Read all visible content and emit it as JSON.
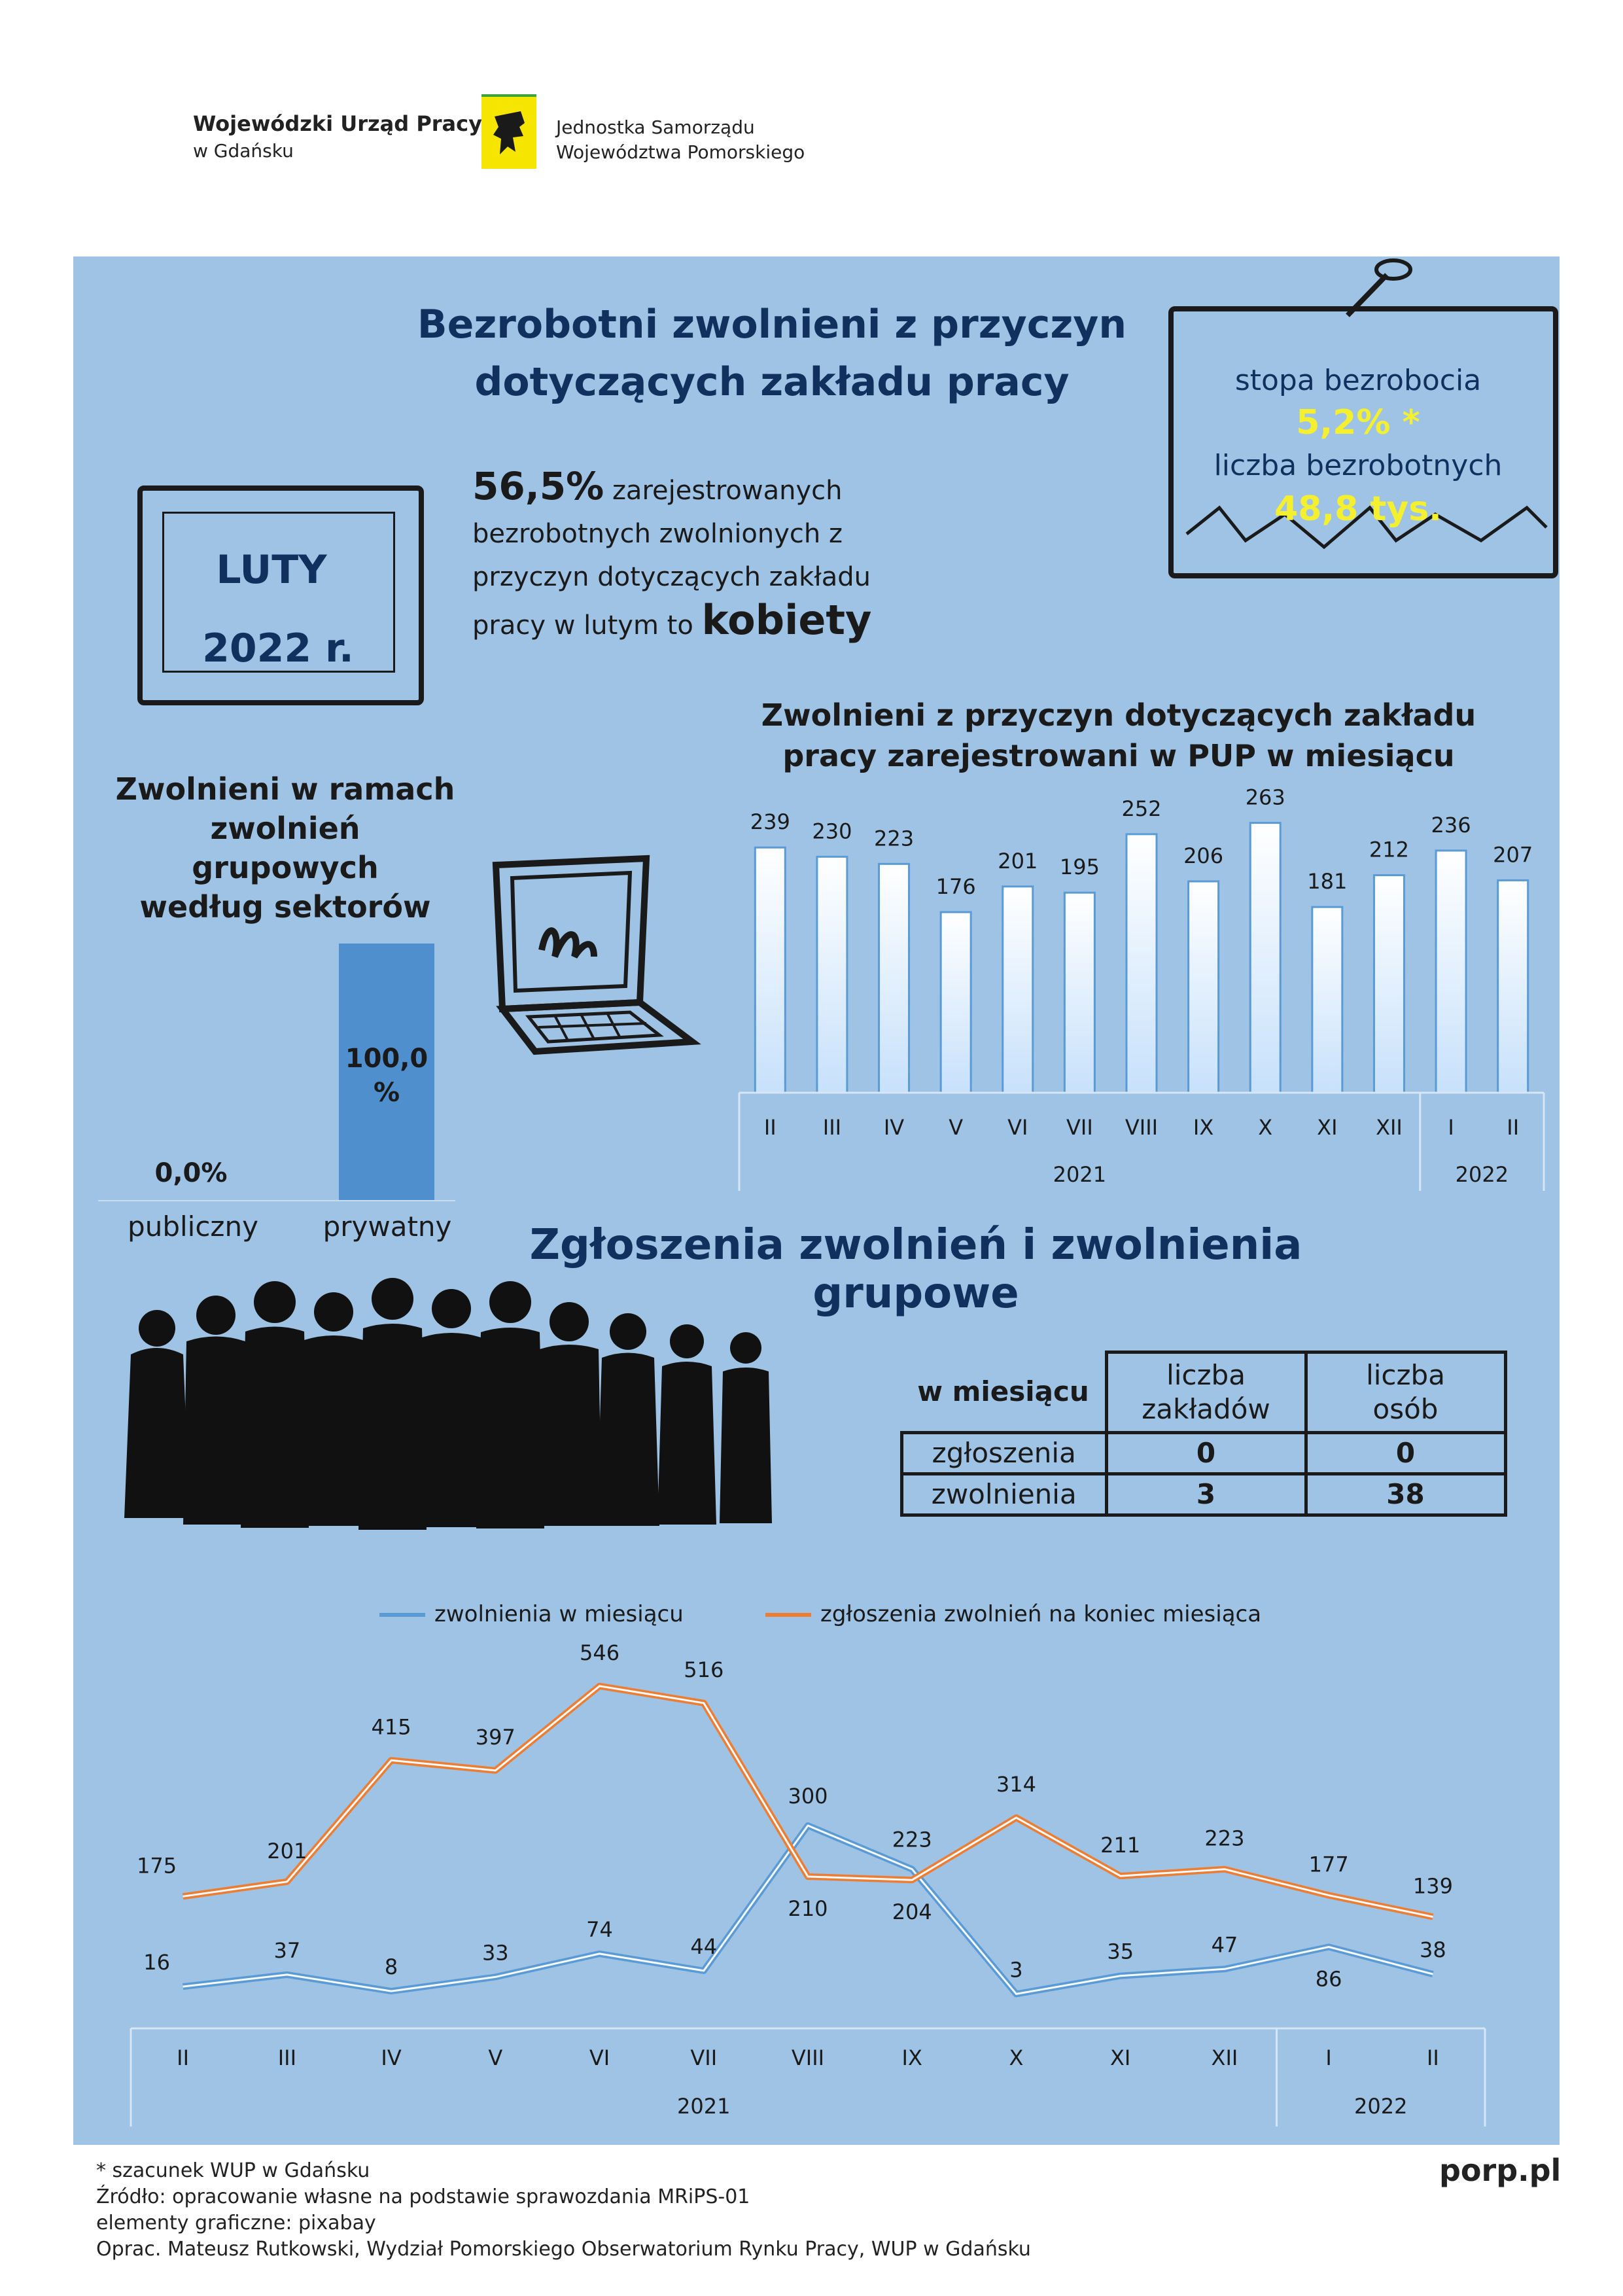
{
  "header": {
    "org_name_line1": "Wojewódzki Urząd Pracy",
    "org_name_line2": "w Gdańsku",
    "unit_line1": "Jednostka Samorządu",
    "unit_line2": "Województwa Pomorskiego"
  },
  "main": {
    "title_line1": "Bezrobotni zwolnieni z przyczyn",
    "title_line2": "dotyczących zakładu pracy",
    "period_month": "LUTY",
    "period_year": "2022 r.",
    "stat": {
      "percent": "56,5%",
      "text_a": "zarejestrowanych",
      "text_b": "bezrobotnych zwolnionych z",
      "text_c": "przyczyn dotyczących zakładu",
      "text_d": "pracy w lutym to",
      "highlight": "kobiety"
    },
    "sign": {
      "rate_label": "stopa bezrobocia",
      "rate_value": "5,2% *",
      "count_label": "liczba bezrobotnych",
      "count_value": "48,8 tys."
    }
  },
  "colors": {
    "panel": "#9ec3e5",
    "title": "#10315e",
    "highlight": "#f4f030",
    "bar_sector": "#4f8fce",
    "line_layoffs": "#5b9bd5",
    "line_notices": "#ed7d31"
  },
  "chart_data": [
    {
      "type": "bar",
      "title_line1": "Zwolnieni w ramach",
      "title_line2": "zwolnień grupowych",
      "title_line3": "według sektorów",
      "categories": [
        "publiczny",
        "prywatny"
      ],
      "values": [
        0.0,
        100.0
      ],
      "value_labels": [
        "0,0%",
        "100,0 %"
      ],
      "ylim": [
        0,
        100
      ]
    },
    {
      "type": "bar",
      "title_line1": "Zwolnieni z przyczyn dotyczących zakładu",
      "title_line2": "pracy zarejestrowani w PUP w miesiącu",
      "categories": [
        "II",
        "III",
        "IV",
        "V",
        "VI",
        "VII",
        "VIII",
        "IX",
        "X",
        "XI",
        "XII",
        "I",
        "II"
      ],
      "values": [
        239,
        230,
        223,
        176,
        201,
        195,
        252,
        206,
        263,
        181,
        212,
        236,
        207
      ],
      "year_groups": [
        {
          "label": "2021",
          "count": 11
        },
        {
          "label": "2022",
          "count": 2
        }
      ],
      "ylim": [
        0,
        300
      ]
    },
    {
      "type": "line",
      "categories": [
        "II",
        "III",
        "IV",
        "V",
        "VI",
        "VII",
        "VIII",
        "IX",
        "X",
        "XI",
        "XII",
        "I",
        "II"
      ],
      "year_groups": [
        {
          "label": "2021",
          "count": 11
        },
        {
          "label": "2022",
          "count": 2
        }
      ],
      "series": [
        {
          "name": "zwolnienia w miesiącu",
          "values": [
            16,
            37,
            8,
            33,
            74,
            44,
            300,
            223,
            3,
            35,
            47,
            86,
            38
          ]
        },
        {
          "name": "zgłoszenia zwolnień na koniec miesiąca",
          "values": [
            175,
            201,
            415,
            397,
            546,
            516,
            210,
            204,
            314,
            211,
            223,
            177,
            139
          ]
        }
      ],
      "legend": "top",
      "ylim": [
        0,
        600
      ]
    }
  ],
  "section2": {
    "title": "Zgłoszenia zwolnień i zwolnienia grupowe",
    "table": {
      "corner": "w miesiącu",
      "col1_a": "liczba",
      "col1_b": "zakładów",
      "col2_a": "liczba",
      "col2_b": "osób",
      "rows": [
        {
          "label": "zgłoszenia",
          "c1": "0",
          "c2": "0"
        },
        {
          "label": "zwolnienia",
          "c1": "3",
          "c2": "38"
        }
      ]
    }
  },
  "footer": {
    "note": "* szacunek WUP w Gdańsku",
    "source": "Źródło: opracowanie własne na podstawie sprawozdania MRiPS-01",
    "graphics": "elementy graficzne: pixabay",
    "author": "Oprac. Mateusz Rutkowski, Wydział Pomorskiego Obserwatorium Rynku Pracy, WUP w Gdańsku",
    "site": "porp.pl"
  }
}
